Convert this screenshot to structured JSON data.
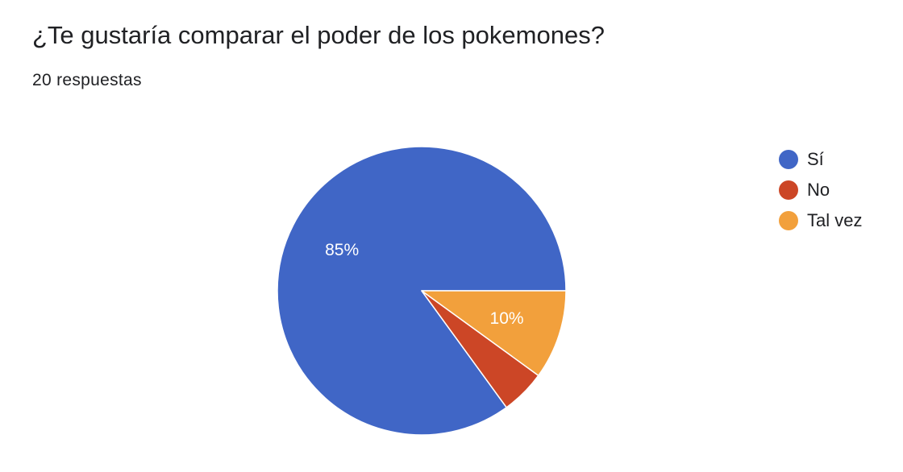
{
  "header": {
    "title": "¿Te gustaría comparar el poder de los pokemones?",
    "responses": "20 respuestas"
  },
  "chart_data": {
    "type": "pie",
    "title": "¿Te gustaría comparar el poder de los pokemones?",
    "categories": [
      "Sí",
      "No",
      "Tal vez"
    ],
    "values": [
      17,
      1,
      2
    ],
    "percent_labels": [
      "85%",
      "",
      "10%"
    ],
    "colors": [
      "#4066c6",
      "#cc4626",
      "#f2a03c"
    ],
    "legend_position": "right",
    "start_angle": "3 o'clock, counter-clockwise",
    "total": 20
  },
  "legend": {
    "items": [
      {
        "label": "Sí",
        "color": "#4066c6"
      },
      {
        "label": "No",
        "color": "#cc4626"
      },
      {
        "label": "Tal vez",
        "color": "#f2a03c"
      }
    ]
  }
}
